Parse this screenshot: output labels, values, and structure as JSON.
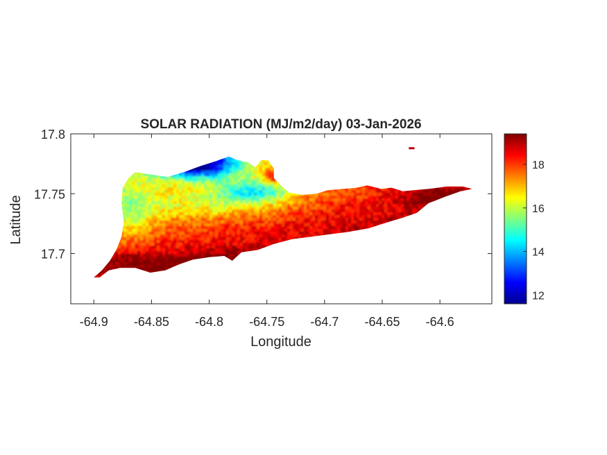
{
  "chart_data": {
    "type": "heatmap",
    "title": "SOLAR RADIATION (MJ/m2/day) 03-Jan-2026",
    "xlabel": "Longitude",
    "ylabel": "Latitude",
    "xlim": [
      -64.92,
      -64.555
    ],
    "ylim": [
      17.658,
      17.8
    ],
    "x_ticks": [
      -64.9,
      -64.85,
      -64.8,
      -64.75,
      -64.7,
      -64.65,
      -64.6
    ],
    "x_tick_labels": [
      "-64.9",
      "-64.85",
      "-64.8",
      "-64.75",
      "-64.7",
      "-64.65",
      "-64.6"
    ],
    "y_ticks": [
      17.7,
      17.75,
      17.8
    ],
    "y_tick_labels": [
      "17.7",
      "17.75",
      "17.8"
    ],
    "colorbar": {
      "colormap": "jet",
      "clim": [
        11.6,
        19.4
      ],
      "ticks": [
        12,
        14,
        16,
        18
      ],
      "tick_labels": [
        "12",
        "14",
        "16",
        "18"
      ]
    },
    "grid": false,
    "island_outline": [
      [
        -64.9,
        17.68
      ],
      [
        -64.893,
        17.686
      ],
      [
        -64.886,
        17.694
      ],
      [
        -64.88,
        17.704
      ],
      [
        -64.876,
        17.714
      ],
      [
        -64.874,
        17.726
      ],
      [
        -64.876,
        17.742
      ],
      [
        -64.875,
        17.755
      ],
      [
        -64.87,
        17.763
      ],
      [
        -64.864,
        17.768
      ],
      [
        -64.85,
        17.766
      ],
      [
        -64.836,
        17.764
      ],
      [
        -64.822,
        17.768
      ],
      [
        -64.808,
        17.773
      ],
      [
        -64.795,
        17.777
      ],
      [
        -64.783,
        17.781
      ],
      [
        -64.775,
        17.778
      ],
      [
        -64.766,
        17.776
      ],
      [
        -64.76,
        17.772
      ],
      [
        -64.755,
        17.778
      ],
      [
        -64.749,
        17.778
      ],
      [
        -64.744,
        17.771
      ],
      [
        -64.744,
        17.763
      ],
      [
        -64.738,
        17.757
      ],
      [
        -64.731,
        17.751
      ],
      [
        -64.719,
        17.749
      ],
      [
        -64.707,
        17.75
      ],
      [
        -64.697,
        17.753
      ],
      [
        -64.684,
        17.754
      ],
      [
        -64.672,
        17.755
      ],
      [
        -64.663,
        17.757
      ],
      [
        -64.651,
        17.754
      ],
      [
        -64.642,
        17.755
      ],
      [
        -64.632,
        17.752
      ],
      [
        -64.622,
        17.753
      ],
      [
        -64.61,
        17.754
      ],
      [
        -64.594,
        17.756
      ],
      [
        -64.58,
        17.756
      ],
      [
        -64.572,
        17.754
      ],
      [
        -64.582,
        17.752
      ],
      [
        -64.594,
        17.748
      ],
      [
        -64.61,
        17.742
      ],
      [
        -64.62,
        17.734
      ],
      [
        -64.632,
        17.73
      ],
      [
        -64.646,
        17.726
      ],
      [
        -64.662,
        17.721
      ],
      [
        -64.68,
        17.718
      ],
      [
        -64.696,
        17.716
      ],
      [
        -64.712,
        17.714
      ],
      [
        -64.728,
        17.712
      ],
      [
        -64.744,
        17.708
      ],
      [
        -64.758,
        17.703
      ],
      [
        -64.772,
        17.701
      ],
      [
        -64.78,
        17.694
      ],
      [
        -64.787,
        17.698
      ],
      [
        -64.8,
        17.697
      ],
      [
        -64.814,
        17.695
      ],
      [
        -64.826,
        17.691
      ],
      [
        -64.838,
        17.686
      ],
      [
        -64.851,
        17.684
      ],
      [
        -64.864,
        17.688
      ],
      [
        -64.877,
        17.688
      ],
      [
        -64.887,
        17.686
      ],
      [
        -64.895,
        17.68
      ]
    ],
    "islet": [
      [
        -64.627,
        17.788
      ],
      [
        -64.622,
        17.788
      ]
    ],
    "field_description": "gridded daily solar radiation; low values (~12-14) along north-central coast near -64.82 to -64.78, yellow-green band (~16) across west and central, rising to ~18-19.4 over south coast and eastern end"
  }
}
